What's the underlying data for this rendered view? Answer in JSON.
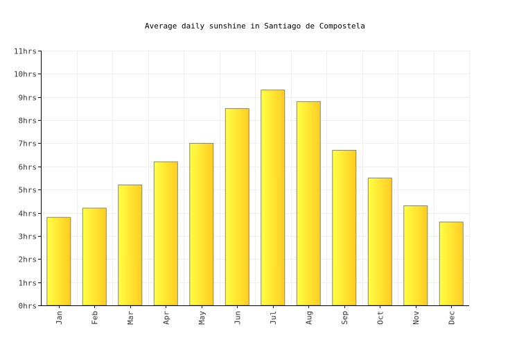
{
  "chart_data": {
    "type": "bar",
    "title": "Average daily sunshine in Santiago de Compostela",
    "xlabel": "",
    "ylabel": "",
    "categories": [
      "Jan",
      "Feb",
      "Mar",
      "Apr",
      "May",
      "Jun",
      "Jul",
      "Aug",
      "Sep",
      "Oct",
      "Nov",
      "Dec"
    ],
    "values": [
      3.8,
      4.2,
      5.2,
      6.2,
      7.0,
      8.5,
      9.3,
      8.8,
      6.7,
      5.5,
      4.3,
      3.6
    ],
    "ylim": [
      0,
      11
    ],
    "y_ticks": [
      "0hrs",
      "1hrs",
      "2hrs",
      "3hrs",
      "4hrs",
      "5hrs",
      "6hrs",
      "7hrs",
      "8hrs",
      "9hrs",
      "10hrs",
      "11hrs"
    ],
    "grid": true,
    "bar_color_light": "#ffff44",
    "bar_color_dark": "#ffcc22"
  }
}
